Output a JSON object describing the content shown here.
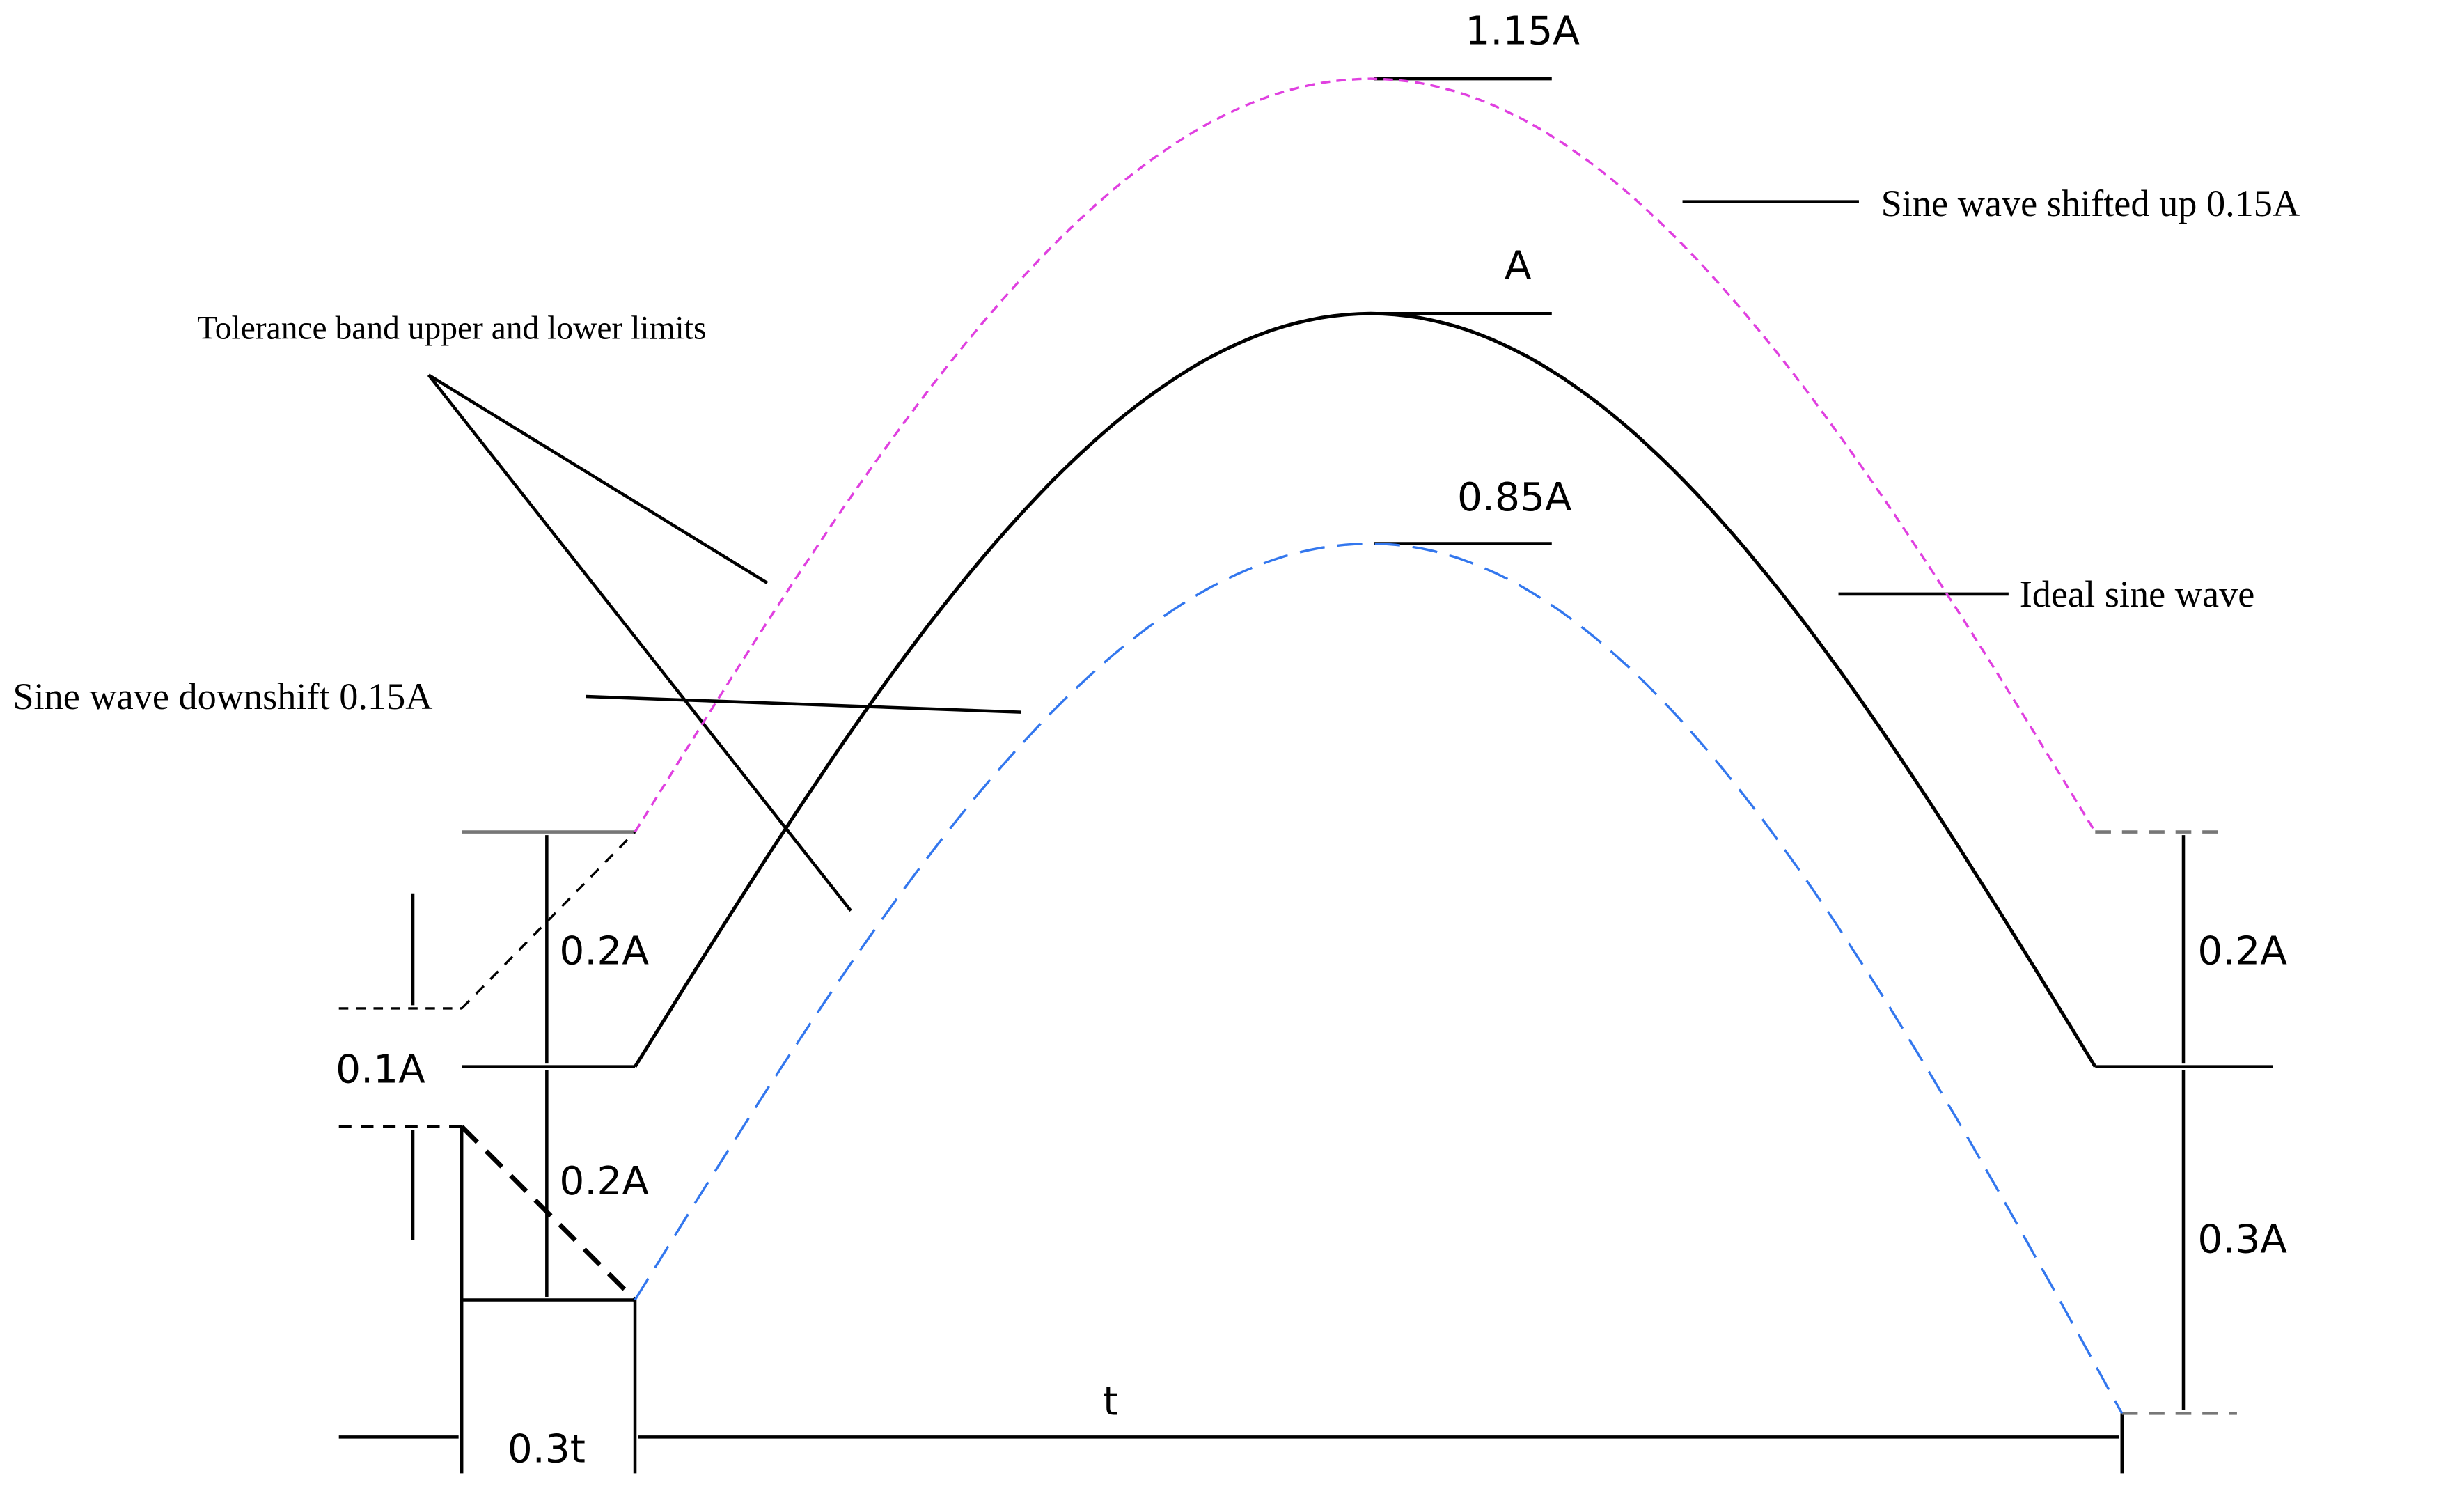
{
  "labels": {
    "peak_upper": "1.15A",
    "peak_ideal": "A",
    "peak_lower": "0.85A",
    "upper_curve": "Sine wave shifted up 0.15A",
    "tolerance": "Tolerance band upper and lower limits",
    "ideal_curve": "Ideal sine wave",
    "lower_curve": "Sine wave downshift 0.15A",
    "left_upper_step": "0.2A",
    "left_offset": "0.1A",
    "left_lower_step": "0.2A",
    "right_upper_step": "0.2A",
    "right_lower_step": "0.3A",
    "period": "t",
    "rise": "0.3t"
  }
}
